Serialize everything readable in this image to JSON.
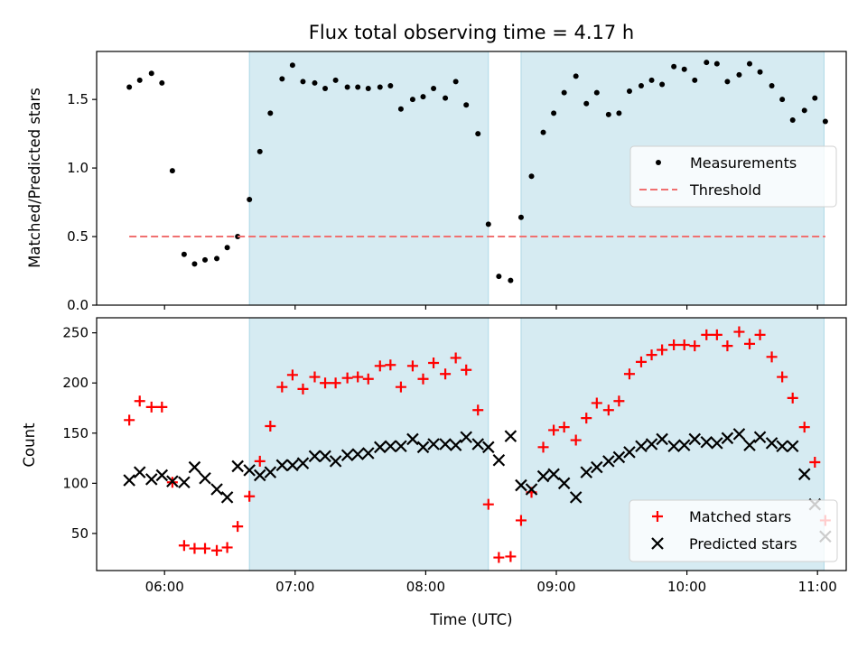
{
  "chart_data": [
    {
      "type": "scatter",
      "title": "Flux total observing time = 4.17 h",
      "xlabel": "",
      "ylabel": "Matched/Predicted stars",
      "xlim": [
        5.48,
        11.22
      ],
      "ylim": [
        0.0,
        1.85
      ],
      "yticks": [
        0.0,
        0.5,
        1.0,
        1.5
      ],
      "ytick_labels": [
        "0.0",
        "0.5",
        "1.0",
        "1.5"
      ],
      "legend": "right",
      "shaded_intervals": [
        [
          6.65,
          8.48
        ],
        [
          8.73,
          11.05
        ]
      ],
      "series": [
        {
          "name": "Measurements",
          "color": "#000000",
          "marker": "dot",
          "x": [
            5.73,
            5.81,
            5.9,
            5.98,
            6.06,
            6.15,
            6.23,
            6.31,
            6.4,
            6.48,
            6.56,
            6.65,
            6.73,
            6.81,
            6.9,
            6.98,
            7.06,
            7.15,
            7.23,
            7.31,
            7.4,
            7.48,
            7.56,
            7.65,
            7.73,
            7.81,
            7.9,
            7.98,
            8.06,
            8.15,
            8.23,
            8.31,
            8.4,
            8.48,
            8.56,
            8.65,
            8.73,
            8.81,
            8.9,
            8.98,
            9.06,
            9.15,
            9.23,
            9.31,
            9.4,
            9.48,
            9.56,
            9.65,
            9.73,
            9.81,
            9.9,
            9.98,
            10.06,
            10.15,
            10.23,
            10.31,
            10.4,
            10.48,
            10.56,
            10.65,
            10.73,
            10.81,
            10.9,
            10.98,
            11.06
          ],
          "y": [
            1.59,
            1.64,
            1.69,
            1.62,
            0.98,
            0.37,
            0.3,
            0.33,
            0.34,
            0.42,
            0.5,
            0.77,
            1.12,
            1.4,
            1.65,
            1.75,
            1.63,
            1.62,
            1.58,
            1.64,
            1.59,
            1.59,
            1.58,
            1.59,
            1.6,
            1.43,
            1.5,
            1.52,
            1.58,
            1.51,
            1.63,
            1.46,
            1.25,
            0.59,
            0.21,
            0.18,
            0.64,
            0.94,
            1.26,
            1.4,
            1.55,
            1.67,
            1.47,
            1.55,
            1.39,
            1.4,
            1.56,
            1.6,
            1.64,
            1.61,
            1.74,
            1.72,
            1.64,
            1.77,
            1.76,
            1.63,
            1.68,
            1.76,
            1.7,
            1.6,
            1.5,
            1.35,
            1.42,
            1.51,
            1.34
          ]
        },
        {
          "name": "Threshold",
          "color": "#f07070",
          "style": "dashed",
          "x": [
            5.73,
            11.06
          ],
          "y": [
            0.5,
            0.5
          ]
        }
      ]
    },
    {
      "type": "scatter",
      "title": "",
      "xlabel": "Time (UTC)",
      "ylabel": "Count",
      "xlim": [
        5.48,
        11.22
      ],
      "ylim": [
        13,
        265
      ],
      "yticks": [
        50,
        100,
        150,
        200,
        250
      ],
      "ytick_labels": [
        "50",
        "100",
        "150",
        "200",
        "250"
      ],
      "xticks": [
        6,
        7,
        8,
        9,
        10,
        11
      ],
      "xtick_labels": [
        "06:00",
        "07:00",
        "08:00",
        "09:00",
        "10:00",
        "11:00"
      ],
      "legend": "lower right",
      "shaded_intervals": [
        [
          6.65,
          8.48
        ],
        [
          8.73,
          11.05
        ]
      ],
      "series": [
        {
          "name": "Matched stars",
          "color": "#ff0000",
          "marker": "plus",
          "x": [
            5.73,
            5.81,
            5.9,
            5.98,
            6.06,
            6.15,
            6.23,
            6.31,
            6.4,
            6.48,
            6.56,
            6.65,
            6.73,
            6.81,
            6.9,
            6.98,
            7.06,
            7.15,
            7.23,
            7.31,
            7.4,
            7.48,
            7.56,
            7.65,
            7.73,
            7.81,
            7.9,
            7.98,
            8.06,
            8.15,
            8.23,
            8.31,
            8.4,
            8.48,
            8.56,
            8.65,
            8.73,
            8.81,
            8.9,
            8.98,
            9.06,
            9.15,
            9.23,
            9.31,
            9.4,
            9.48,
            9.56,
            9.65,
            9.73,
            9.81,
            9.9,
            9.98,
            10.06,
            10.15,
            10.23,
            10.31,
            10.4,
            10.48,
            10.56,
            10.65,
            10.73,
            10.81,
            10.9,
            10.98,
            11.06
          ],
          "y": [
            163,
            182,
            176,
            176,
            101,
            38,
            35,
            35,
            33,
            36,
            57,
            87,
            122,
            157,
            196,
            208,
            194,
            206,
            200,
            200,
            205,
            206,
            204,
            217,
            218,
            196,
            217,
            204,
            220,
            209,
            225,
            213,
            173,
            79,
            26,
            27,
            63,
            91,
            136,
            153,
            156,
            143,
            165,
            180,
            173,
            182,
            209,
            221,
            228,
            233,
            238,
            238,
            237,
            248,
            248,
            237,
            251,
            239,
            248,
            226,
            206,
            185,
            156,
            121,
            63
          ]
        },
        {
          "name": "Predicted stars",
          "color": "#000000",
          "marker": "x",
          "x": [
            5.73,
            5.81,
            5.9,
            5.98,
            6.06,
            6.15,
            6.23,
            6.31,
            6.4,
            6.48,
            6.56,
            6.65,
            6.73,
            6.81,
            6.9,
            6.98,
            7.06,
            7.15,
            7.23,
            7.31,
            7.4,
            7.48,
            7.56,
            7.65,
            7.73,
            7.81,
            7.9,
            7.98,
            8.06,
            8.15,
            8.23,
            8.31,
            8.4,
            8.48,
            8.56,
            8.65,
            8.73,
            8.81,
            8.9,
            8.98,
            9.06,
            9.15,
            9.23,
            9.31,
            9.4,
            9.48,
            9.56,
            9.65,
            9.73,
            9.81,
            9.9,
            9.98,
            10.06,
            10.15,
            10.23,
            10.31,
            10.4,
            10.48,
            10.56,
            10.65,
            10.73,
            10.81,
            10.9,
            10.98,
            11.06
          ],
          "y": [
            103,
            111,
            104,
            108,
            102,
            101,
            116,
            105,
            94,
            86,
            117,
            113,
            108,
            111,
            118,
            118,
            120,
            127,
            127,
            122,
            128,
            129,
            130,
            136,
            137,
            137,
            144,
            136,
            139,
            139,
            138,
            146,
            139,
            136,
            123,
            147,
            98,
            94,
            107,
            109,
            100,
            86,
            111,
            116,
            122,
            126,
            131,
            137,
            139,
            144,
            137,
            138,
            144,
            141,
            140,
            145,
            149,
            138,
            146,
            140,
            137,
            137,
            109,
            79,
            47
          ]
        }
      ]
    }
  ]
}
